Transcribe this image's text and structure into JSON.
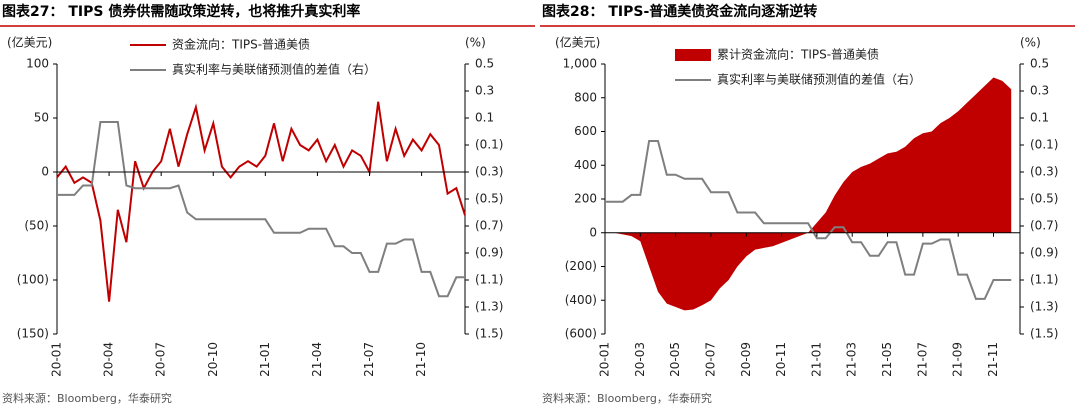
{
  "chart_data": [
    {
      "type": "line",
      "title": "图表27： TIPS 债券供需随政策逆转，也将推升真实利率",
      "y_unit": "(亿美元)",
      "y2_unit": "(%)",
      "source": "资料来源：Bloomberg，华泰研究",
      "x": [
        0,
        0.5,
        1,
        1.5,
        2,
        2.5,
        3,
        3.5,
        4,
        4.5,
        5,
        5.5,
        6,
        6.5,
        7,
        7.5,
        8,
        8.5,
        9,
        9.5,
        10,
        10.5,
        11,
        11.5,
        12,
        12.5,
        13,
        13.5,
        14,
        14.5,
        15,
        15.5,
        16,
        16.5,
        17,
        17.5,
        18,
        18.5,
        19,
        19.5,
        20,
        20.5,
        21,
        21.5,
        22,
        22.5,
        23,
        23.5
      ],
      "xlim": [
        0,
        23.5
      ],
      "xticks": [
        {
          "value": 0,
          "label": "20-01"
        },
        {
          "value": 3,
          "label": "20-04"
        },
        {
          "value": 6,
          "label": "20-07"
        },
        {
          "value": 9,
          "label": "20-10"
        },
        {
          "value": 12,
          "label": "21-01"
        },
        {
          "value": 15,
          "label": "21-04"
        },
        {
          "value": 18,
          "label": "21-07"
        },
        {
          "value": 21,
          "label": "21-10"
        }
      ],
      "ylim": [
        -150,
        100
      ],
      "yticks": [
        100,
        50,
        0,
        {
          "value": -50,
          "label": "(50)"
        },
        {
          "value": -100,
          "label": "(100)"
        },
        {
          "value": -150,
          "label": "(150)"
        }
      ],
      "y2lim": [
        -1.5,
        0.5
      ],
      "y2ticks": [
        0.5,
        0.3,
        0.1,
        {
          "value": -0.1,
          "label": "(0.1)"
        },
        {
          "value": -0.3,
          "label": "(0.3)"
        },
        {
          "value": -0.5,
          "label": "(0.5)"
        },
        {
          "value": -0.7,
          "label": "(0.7)"
        },
        {
          "value": -0.9,
          "label": "(0.9)"
        },
        {
          "value": -1.1,
          "label": "(1.1)"
        },
        {
          "value": -1.3,
          "label": "(1.3)"
        },
        {
          "value": -1.5,
          "label": "(1.5)"
        }
      ],
      "series": [
        {
          "name": "资金流向：TIPS-普通美债",
          "color": "#c00000",
          "style": "line",
          "values": [
            -5,
            5,
            -10,
            -5,
            -10,
            -45,
            -120,
            -35,
            -65,
            10,
            -15,
            0,
            10,
            40,
            5,
            35,
            60,
            20,
            45,
            5,
            -5,
            5,
            10,
            5,
            15,
            45,
            10,
            40,
            25,
            20,
            30,
            10,
            25,
            5,
            20,
            15,
            0,
            65,
            10,
            40,
            15,
            30,
            20,
            35,
            25,
            -20,
            -15,
            -40
          ]
        },
        {
          "name": "真实利率与美联储预测值的差值（右）",
          "color": "#7f7f7f",
          "style": "line",
          "axis": "y2",
          "values": [
            -0.47,
            -0.47,
            -0.47,
            -0.4,
            -0.4,
            0.07,
            0.07,
            0.07,
            -0.4,
            -0.42,
            -0.42,
            -0.42,
            -0.42,
            -0.42,
            -0.4,
            -0.6,
            -0.65,
            -0.65,
            -0.65,
            -0.65,
            -0.65,
            -0.65,
            -0.65,
            -0.65,
            -0.65,
            -0.75,
            -0.75,
            -0.75,
            -0.75,
            -0.72,
            -0.72,
            -0.72,
            -0.85,
            -0.85,
            -0.9,
            -0.9,
            -1.04,
            -1.04,
            -0.83,
            -0.83,
            -0.8,
            -0.8,
            -1.04,
            -1.04,
            -1.22,
            -1.22,
            -1.08,
            -1.08
          ]
        }
      ]
    },
    {
      "type": "line",
      "title": "图表28： TIPS-普通美债资金流向逐渐逆转",
      "y_unit": "(亿美元)",
      "y2_unit": "(%)",
      "source": "资料来源：Bloomberg，华泰研究",
      "x": [
        0,
        0.5,
        1,
        1.5,
        2,
        2.5,
        3,
        3.5,
        4,
        4.5,
        5,
        5.5,
        6,
        6.5,
        7,
        7.5,
        8,
        8.5,
        9,
        9.5,
        10,
        10.5,
        11,
        11.5,
        12,
        12.5,
        13,
        13.5,
        14,
        14.5,
        15,
        15.5,
        16,
        16.5,
        17,
        17.5,
        18,
        18.5,
        19,
        19.5,
        20,
        20.5,
        21,
        21.5,
        22,
        22.5,
        23
      ],
      "xlim": [
        0,
        23.5
      ],
      "xticks": [
        {
          "value": 0,
          "label": "20-01"
        },
        {
          "value": 2,
          "label": "20-03"
        },
        {
          "value": 4,
          "label": "20-05"
        },
        {
          "value": 6,
          "label": "20-07"
        },
        {
          "value": 8,
          "label": "20-09"
        },
        {
          "value": 10,
          "label": "20-11"
        },
        {
          "value": 12,
          "label": "21-01"
        },
        {
          "value": 14,
          "label": "21-03"
        },
        {
          "value": 16,
          "label": "21-05"
        },
        {
          "value": 18,
          "label": "21-07"
        },
        {
          "value": 20,
          "label": "21-09"
        },
        {
          "value": 22,
          "label": "21-11"
        }
      ],
      "ylim": [
        -600,
        1000
      ],
      "yticks": [
        {
          "value": 1000,
          "label": "1,000"
        },
        800,
        600,
        400,
        200,
        0,
        {
          "value": -200,
          "label": "(200)"
        },
        {
          "value": -400,
          "label": "(400)"
        },
        {
          "value": -600,
          "label": "(600)"
        }
      ],
      "y2lim": [
        -1.5,
        0.5
      ],
      "y2ticks": [
        0.5,
        0.3,
        0.1,
        {
          "value": -0.1,
          "label": "(0.1)"
        },
        {
          "value": -0.3,
          "label": "(0.3)"
        },
        {
          "value": -0.5,
          "label": "(0.5)"
        },
        {
          "value": -0.7,
          "label": "(0.7)"
        },
        {
          "value": -0.9,
          "label": "(0.9)"
        },
        {
          "value": -1.1,
          "label": "(1.1)"
        },
        {
          "value": -1.3,
          "label": "(1.3)"
        },
        {
          "value": -1.5,
          "label": "(1.5)"
        }
      ],
      "series": [
        {
          "name": "累计资金流向：TIPS-普通美债",
          "color": "#c00000",
          "style": "area",
          "values": [
            0,
            0,
            -10,
            -20,
            -50,
            -200,
            -350,
            -420,
            -440,
            -460,
            -455,
            -430,
            -400,
            -330,
            -280,
            -200,
            -140,
            -100,
            -90,
            -80,
            -60,
            -40,
            -20,
            0,
            60,
            120,
            220,
            300,
            360,
            390,
            410,
            440,
            470,
            480,
            510,
            560,
            590,
            600,
            650,
            680,
            720,
            770,
            820,
            870,
            920,
            900,
            850
          ]
        },
        {
          "name": "真实利率与美联储预测值的差值（右）",
          "color": "#7f7f7f",
          "style": "line",
          "axis": "y2",
          "values": [
            -0.52,
            -0.52,
            -0.52,
            -0.47,
            -0.47,
            -0.07,
            -0.07,
            -0.32,
            -0.32,
            -0.35,
            -0.35,
            -0.35,
            -0.45,
            -0.45,
            -0.45,
            -0.6,
            -0.6,
            -0.6,
            -0.68,
            -0.68,
            -0.68,
            -0.68,
            -0.68,
            -0.68,
            -0.79,
            -0.79,
            -0.71,
            -0.71,
            -0.82,
            -0.82,
            -0.92,
            -0.92,
            -0.82,
            -0.82,
            -1.06,
            -1.06,
            -0.83,
            -0.83,
            -0.8,
            -0.8,
            -1.06,
            -1.06,
            -1.24,
            -1.24,
            -1.1,
            -1.1,
            -1.1
          ]
        }
      ]
    }
  ]
}
